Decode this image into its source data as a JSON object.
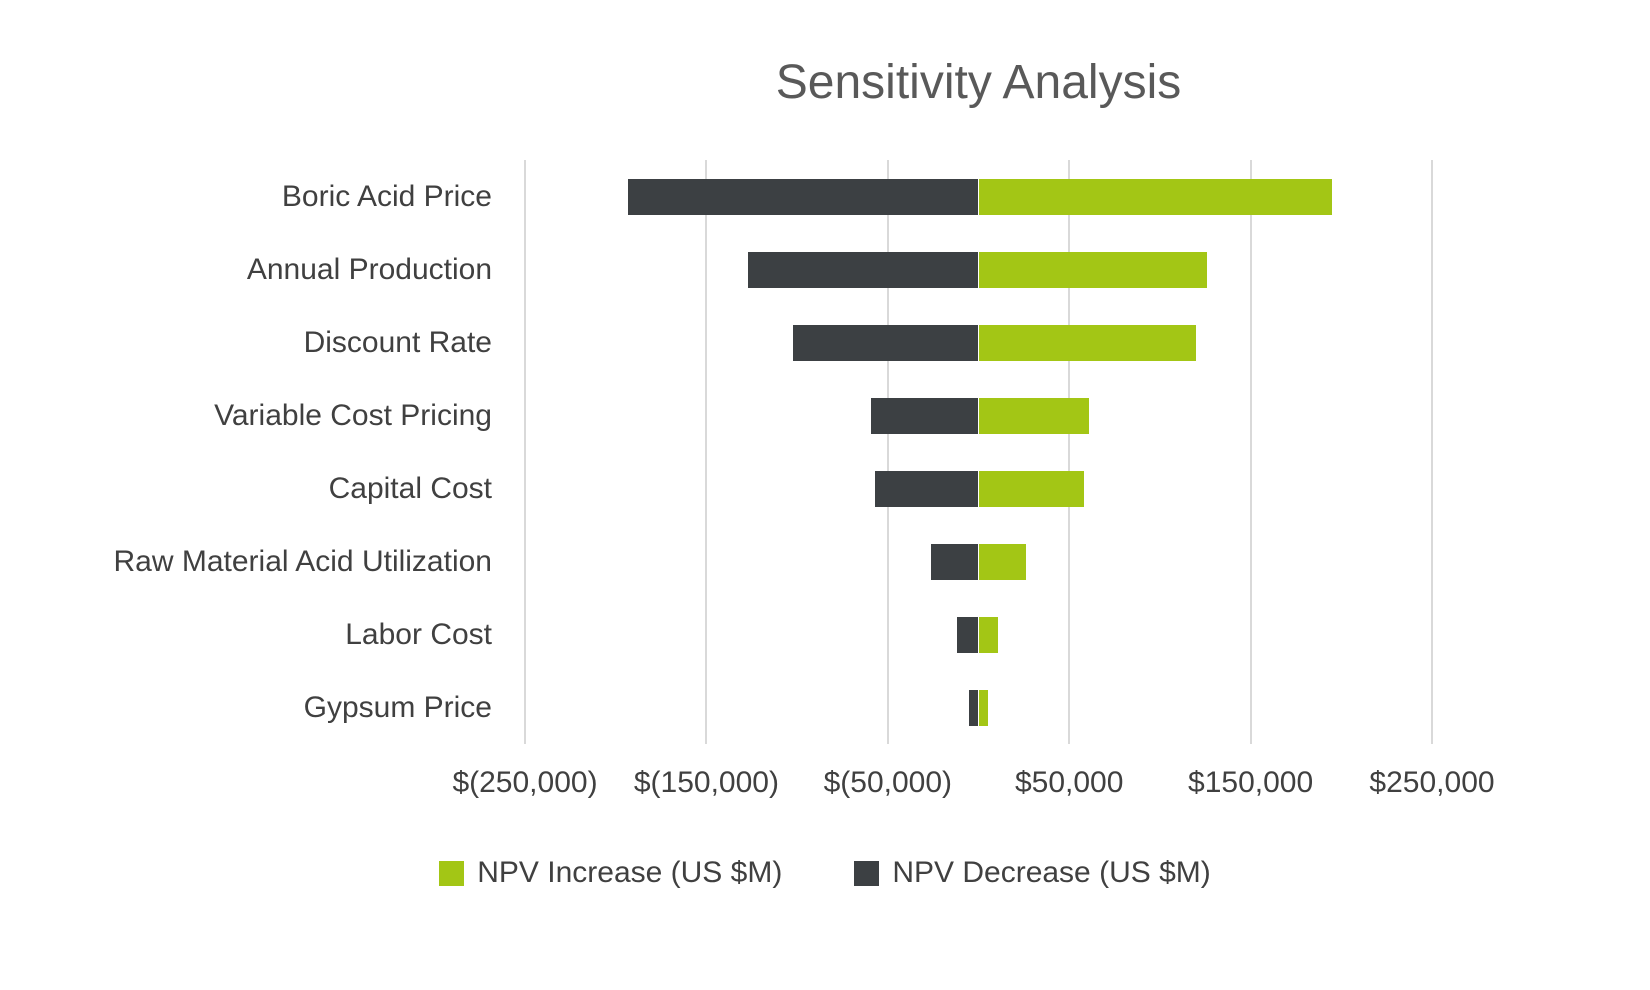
{
  "title": "Sensitivity Analysis",
  "colors": {
    "npv_increase": "#A3C615",
    "npv_decrease": "#3C4043",
    "gridline": "#D9D9D9",
    "title_text": "#595959",
    "axis_text": "#404040",
    "background": "#FFFFFF"
  },
  "chart_data": {
    "type": "bar",
    "subtype": "tornado",
    "orientation": "horizontal",
    "title": "Sensitivity Analysis",
    "categories": [
      "Boric Acid Price",
      "Annual Production",
      "Discount Rate",
      "Variable Cost Pricing",
      "Capital Cost",
      "Raw Material Acid Utilization",
      "Labor Cost",
      "Gypsum Price"
    ],
    "series": [
      {
        "name": "NPV Increase (US $M)",
        "color": "#A3C615",
        "values": [
          195000,
          126000,
          120000,
          61000,
          58000,
          26000,
          11000,
          5000
        ]
      },
      {
        "name": "NPV Decrease (US $M)",
        "color": "#3C4043",
        "values": [
          -193000,
          -127000,
          -102000,
          -59000,
          -57000,
          -26000,
          -12000,
          -5000
        ]
      }
    ],
    "xlabel": "",
    "ylabel": "",
    "xlim": [
      -250000,
      250000
    ],
    "x_tick_values": [
      -250000,
      -150000,
      -50000,
      50000,
      150000,
      250000
    ],
    "x_tick_labels": [
      "$(250,000)",
      "$(150,000)",
      "$(50,000)",
      "$50,000",
      "$150,000",
      "$250,000"
    ],
    "grid": "vertical-gridlines-on",
    "legend_position": "bottom"
  }
}
